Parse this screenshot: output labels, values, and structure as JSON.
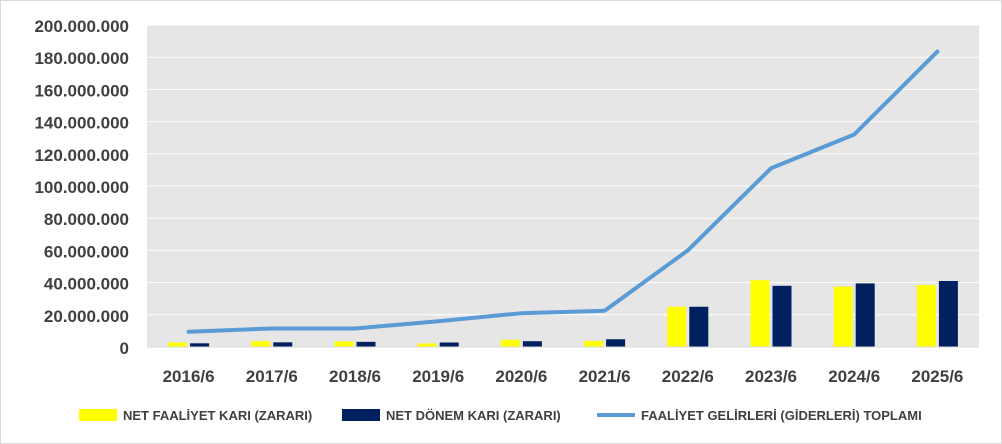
{
  "chart_data": {
    "type": "bar",
    "categories": [
      "2016/6",
      "2017/6",
      "2018/6",
      "2019/6",
      "2020/6",
      "2021/6",
      "2022/6",
      "2023/6",
      "2024/6",
      "2025/6"
    ],
    "series": [
      {
        "name": "NET FAALİYET KARI (ZARARI)",
        "type": "bar",
        "color": "#ffff00",
        "values": [
          2800000,
          3600000,
          3500000,
          2200000,
          4500000,
          3800000,
          25000000,
          41500000,
          37500000,
          38500000
        ]
      },
      {
        "name": "NET DÖNEM KARI (ZARARI)",
        "type": "bar",
        "color": "#002060",
        "values": [
          2300000,
          2900000,
          3200000,
          2800000,
          3600000,
          4800000,
          25000000,
          38000000,
          39500000,
          41000000
        ]
      },
      {
        "name": "FAALİYET GELİRLERİ (GİDERLERİ) TOPLAMI",
        "type": "line",
        "color": "#5b9bd5",
        "values": [
          9500000,
          11500000,
          11500000,
          16000000,
          21000000,
          22500000,
          60000000,
          111000000,
          132000000,
          183500000
        ]
      }
    ],
    "y_tick_labels": [
      "0",
      "20.000.000",
      "40.000.000",
      "60.000.000",
      "80.000.000",
      "100.000.000",
      "120.000.000",
      "140.000.000",
      "160.000.000",
      "180.000.000",
      "200.000.000"
    ],
    "ylim": [
      0,
      200000000
    ],
    "grid": true,
    "legend_position": "bottom",
    "plot_background": "#e7e6e6",
    "gridline_color": "#ffffff"
  }
}
